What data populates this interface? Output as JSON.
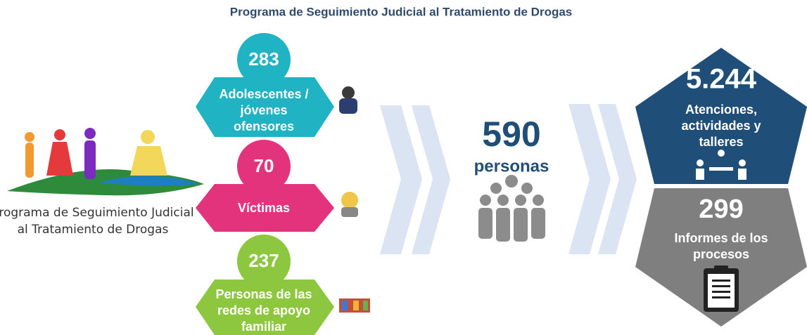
{
  "title": "Programa de Seguimiento Judicial al Tratamiento de Drogas",
  "logo": {
    "lines": [
      "Programa de Seguimiento Judicial",
      "al Tratamiento de Drogas"
    ]
  },
  "groups": [
    {
      "value": "283",
      "label_lines": [
        "Adolescentes  /",
        "jóvenes",
        "ofensores"
      ]
    },
    {
      "value": "70",
      "label_lines": [
        "Víctimas"
      ]
    },
    {
      "value": "237",
      "label_lines": [
        "Personas de las",
        "redes de apoyo",
        "familiar"
      ]
    }
  ],
  "total": {
    "value": "590",
    "label": "personas"
  },
  "outputs": [
    {
      "value": "5.244",
      "label_lines": [
        "Atenciones,",
        "actividades y",
        "talleres"
      ]
    },
    {
      "value": "299",
      "label_lines": [
        "Informes de los",
        "procesos"
      ]
    }
  ]
}
